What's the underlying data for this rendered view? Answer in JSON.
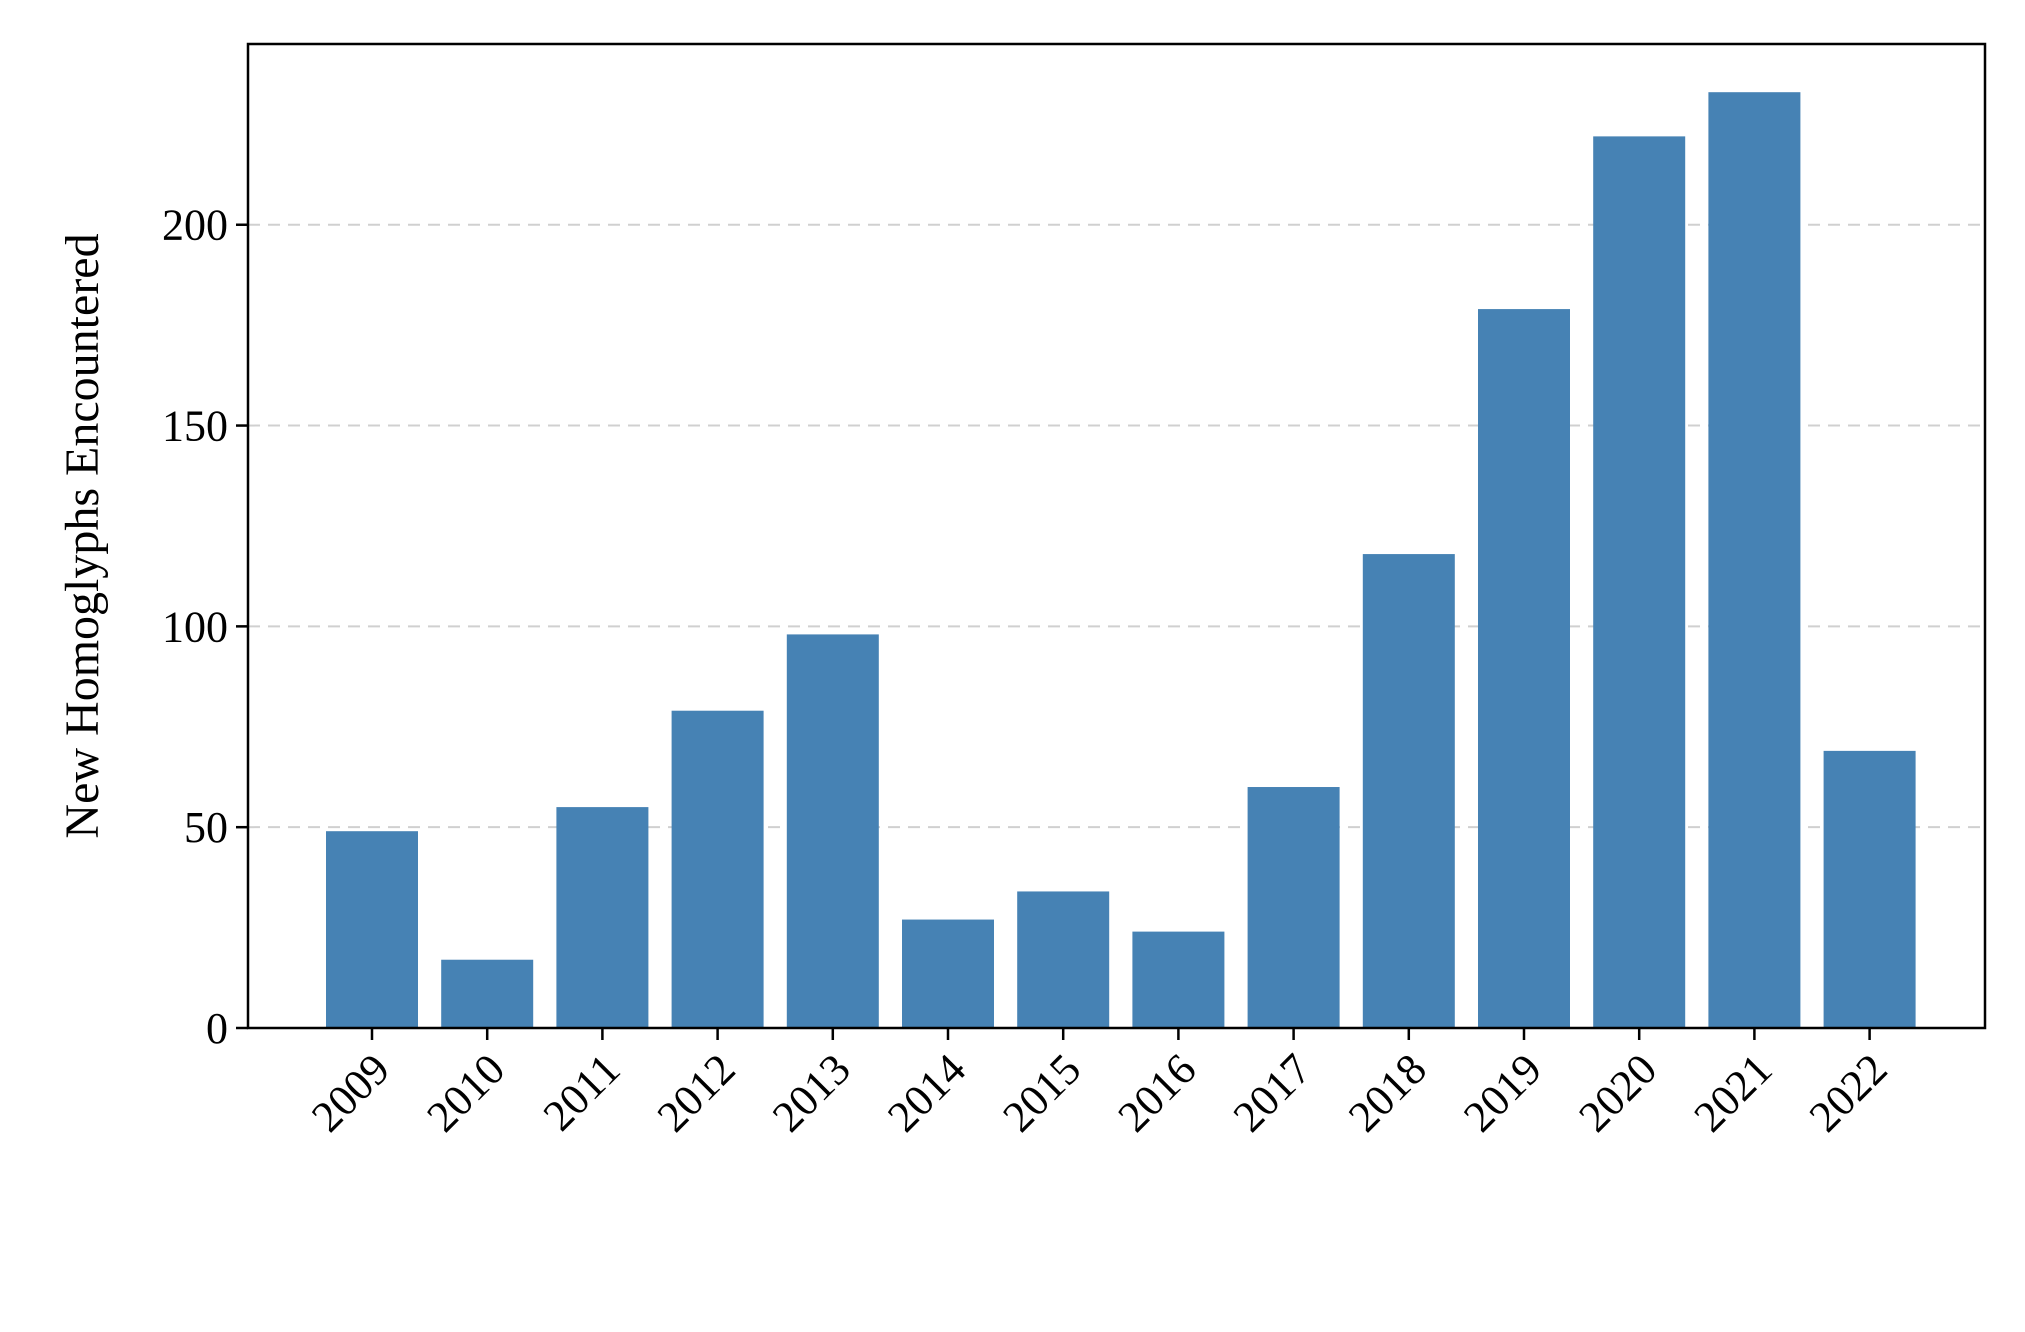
{
  "chart_data": {
    "type": "bar",
    "title": "",
    "xlabel": "",
    "ylabel": "New Homoglyphs Encountered",
    "categories": [
      "2009",
      "2010",
      "2011",
      "2012",
      "2013",
      "2014",
      "2015",
      "2016",
      "2017",
      "2018",
      "2019",
      "2020",
      "2021",
      "2022"
    ],
    "values": [
      49,
      17,
      55,
      79,
      98,
      27,
      34,
      24,
      60,
      118,
      179,
      222,
      233,
      69
    ],
    "ylim": [
      0,
      245
    ],
    "yticks": [
      0,
      50,
      100,
      150,
      200
    ],
    "grid": "horizontal-dashed",
    "legend": "none"
  },
  "colors": {
    "bar": "#4682B4",
    "grid": "#d0d0d0",
    "axis": "#000000"
  }
}
